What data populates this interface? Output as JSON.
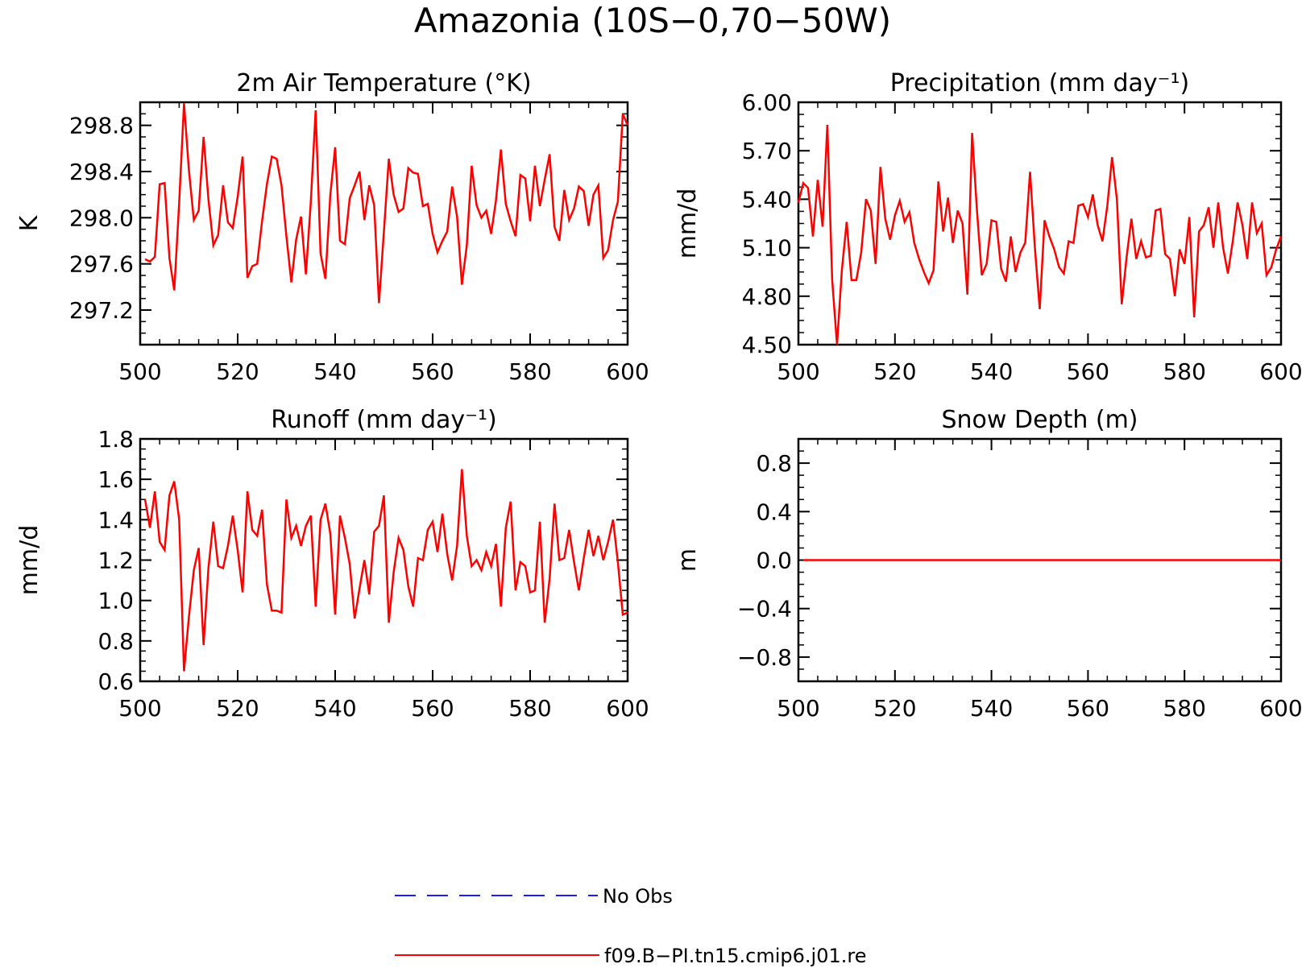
{
  "figure": {
    "title": "Amazonia (10S−0,70−50W)"
  },
  "legend": {
    "items": [
      {
        "label": "No Obs",
        "color": "#1a1aff",
        "style": "dashed"
      },
      {
        "label": "f09.B−PI.tn15.cmip6.j01.re",
        "color": "#ff0000",
        "style": "solid"
      }
    ]
  },
  "chart_data": [
    {
      "type": "line",
      "title": "2m Air Temperature (°K)",
      "ylabel": "K",
      "xlim": [
        500,
        600
      ],
      "ylim": [
        296.9,
        299.0
      ],
      "xticks": [
        500,
        520,
        540,
        560,
        580,
        600
      ],
      "xtick_labels": [
        "500",
        "520",
        "540",
        "560",
        "580",
        "600"
      ],
      "yticks": [
        297.2,
        297.6,
        298.0,
        298.4,
        298.8
      ],
      "ytick_labels": [
        "297.2",
        "297.6",
        "298.0",
        "298.4",
        "298.8"
      ],
      "series": [
        {
          "color": "#ff0000",
          "x": [
            501,
            502,
            503,
            504,
            505,
            506,
            507,
            508,
            509,
            510,
            511,
            512,
            513,
            514,
            515,
            516,
            517,
            518,
            519,
            520,
            521,
            522,
            523,
            524,
            525,
            526,
            527,
            528,
            529,
            530,
            531,
            532,
            533,
            534,
            535,
            536,
            537,
            538,
            539,
            540,
            541,
            542,
            543,
            544,
            545,
            546,
            547,
            548,
            549,
            550,
            551,
            552,
            553,
            554,
            555,
            556,
            557,
            558,
            559,
            560,
            561,
            562,
            563,
            564,
            565,
            566,
            567,
            568,
            569,
            570,
            571,
            572,
            573,
            574,
            575,
            576,
            577,
            578,
            579,
            580,
            581,
            582,
            583,
            584,
            585,
            586,
            587,
            588,
            589,
            590,
            591,
            592,
            593,
            594,
            595,
            596,
            597,
            598,
            599,
            600
          ],
          "values": [
            297.64,
            297.62,
            297.66,
            298.29,
            298.3,
            297.65,
            297.37,
            298.13,
            298.99,
            298.41,
            297.98,
            298.06,
            298.7,
            298.16,
            297.76,
            297.85,
            298.28,
            297.96,
            297.91,
            298.18,
            298.53,
            297.48,
            297.58,
            297.6,
            297.97,
            298.29,
            298.53,
            298.51,
            298.28,
            297.84,
            297.44,
            297.81,
            298.01,
            297.51,
            298.14,
            298.93,
            297.69,
            297.47,
            298.2,
            298.61,
            297.8,
            297.77,
            298.17,
            298.28,
            298.4,
            297.98,
            298.28,
            298.11,
            297.26,
            297.88,
            298.51,
            298.2,
            298.05,
            298.08,
            298.43,
            298.39,
            298.38,
            298.1,
            298.12,
            297.86,
            297.7,
            297.8,
            297.88,
            298.27,
            298.01,
            297.42,
            297.76,
            298.45,
            298.11,
            298.0,
            298.06,
            297.86,
            298.15,
            298.59,
            298.12,
            297.97,
            297.84,
            298.37,
            298.34,
            297.97,
            298.45,
            298.1,
            298.33,
            298.55,
            297.92,
            297.8,
            298.24,
            297.98,
            298.08,
            298.27,
            298.23,
            297.93,
            298.2,
            298.28,
            297.65,
            297.72,
            297.98,
            298.14,
            298.9,
            298.8
          ]
        }
      ]
    },
    {
      "type": "line",
      "title": "Precipitation (mm day⁻¹)",
      "ylabel": "mm/d",
      "xlim": [
        500,
        600
      ],
      "ylim": [
        4.5,
        6.0
      ],
      "xticks": [
        500,
        520,
        540,
        560,
        580,
        600
      ],
      "xtick_labels": [
        "500",
        "520",
        "540",
        "560",
        "580",
        "600"
      ],
      "yticks": [
        4.5,
        4.8,
        5.1,
        5.4,
        5.7,
        6.0
      ],
      "ytick_labels": [
        "4.50",
        "4.80",
        "5.10",
        "5.40",
        "5.70",
        "6.00"
      ],
      "series": [
        {
          "color": "#ff0000",
          "x": [
            500,
            501,
            502,
            503,
            504,
            505,
            506,
            507,
            508,
            509,
            510,
            511,
            512,
            513,
            514,
            515,
            516,
            517,
            518,
            519,
            520,
            521,
            522,
            523,
            524,
            525,
            526,
            527,
            528,
            529,
            530,
            531,
            532,
            533,
            534,
            535,
            536,
            537,
            538,
            539,
            540,
            541,
            542,
            543,
            544,
            545,
            546,
            547,
            548,
            549,
            550,
            551,
            552,
            553,
            554,
            555,
            556,
            557,
            558,
            559,
            560,
            561,
            562,
            563,
            564,
            565,
            566,
            567,
            568,
            569,
            570,
            571,
            572,
            573,
            574,
            575,
            576,
            577,
            578,
            579,
            580,
            581,
            582,
            583,
            584,
            585,
            586,
            587,
            588,
            589,
            590,
            591,
            592,
            593,
            594,
            595,
            596,
            597,
            598,
            599,
            600
          ],
          "values": [
            5.38,
            5.5,
            5.47,
            5.17,
            5.52,
            5.23,
            5.86,
            4.9,
            4.5,
            4.96,
            5.26,
            4.9,
            4.9,
            5.07,
            5.4,
            5.33,
            5.0,
            5.6,
            5.28,
            5.15,
            5.3,
            5.39,
            5.26,
            5.32,
            5.13,
            5.03,
            4.95,
            4.88,
            4.96,
            5.51,
            5.2,
            5.41,
            5.13,
            5.33,
            5.25,
            4.81,
            5.81,
            5.33,
            4.93,
            5.0,
            5.27,
            5.26,
            4.97,
            4.89,
            5.17,
            4.95,
            5.07,
            5.13,
            5.57,
            5.1,
            4.72,
            5.27,
            5.17,
            5.09,
            4.98,
            4.94,
            5.14,
            5.13,
            5.36,
            5.37,
            5.29,
            5.43,
            5.24,
            5.14,
            5.36,
            5.66,
            5.4,
            4.75,
            5.04,
            5.28,
            5.03,
            5.14,
            5.04,
            5.05,
            5.33,
            5.34,
            5.06,
            5.03,
            4.8,
            5.09,
            5.0,
            5.29,
            4.67,
            5.2,
            5.24,
            5.35,
            5.1,
            5.38,
            5.1,
            4.94,
            5.14,
            5.38,
            5.24,
            5.03,
            5.38,
            5.19,
            5.25,
            4.93,
            4.98,
            5.09,
            5.17
          ]
        }
      ]
    },
    {
      "type": "line",
      "title": "Runoff (mm day⁻¹)",
      "ylabel": "mm/d",
      "xlim": [
        500,
        600
      ],
      "ylim": [
        0.6,
        1.8
      ],
      "xticks": [
        500,
        520,
        540,
        560,
        580,
        600
      ],
      "xtick_labels": [
        "500",
        "520",
        "540",
        "560",
        "580",
        "600"
      ],
      "yticks": [
        0.6,
        0.8,
        1.0,
        1.2,
        1.4,
        1.6,
        1.8
      ],
      "ytick_labels": [
        "0.6",
        "0.8",
        "1.0",
        "1.2",
        "1.4",
        "1.6",
        "1.8"
      ],
      "series": [
        {
          "color": "#ff0000",
          "x": [
            501,
            502,
            503,
            504,
            505,
            506,
            507,
            508,
            509,
            510,
            511,
            512,
            513,
            514,
            515,
            516,
            517,
            518,
            519,
            520,
            521,
            522,
            523,
            524,
            525,
            526,
            527,
            528,
            529,
            530,
            531,
            532,
            533,
            534,
            535,
            536,
            537,
            538,
            539,
            540,
            541,
            542,
            543,
            544,
            545,
            546,
            547,
            548,
            549,
            550,
            551,
            552,
            553,
            554,
            555,
            556,
            557,
            558,
            559,
            560,
            561,
            562,
            563,
            564,
            565,
            566,
            567,
            568,
            569,
            570,
            571,
            572,
            573,
            574,
            575,
            576,
            577,
            578,
            579,
            580,
            581,
            582,
            583,
            584,
            585,
            586,
            587,
            588,
            589,
            590,
            591,
            592,
            593,
            594,
            595,
            596,
            597,
            598,
            599,
            600
          ],
          "values": [
            1.5,
            1.36,
            1.54,
            1.29,
            1.25,
            1.52,
            1.59,
            1.4,
            0.65,
            0.92,
            1.15,
            1.26,
            0.78,
            1.16,
            1.39,
            1.17,
            1.16,
            1.27,
            1.42,
            1.25,
            1.04,
            1.54,
            1.35,
            1.32,
            1.45,
            1.08,
            0.95,
            0.95,
            0.94,
            1.5,
            1.31,
            1.37,
            1.27,
            1.37,
            1.42,
            0.97,
            1.4,
            1.48,
            1.33,
            0.93,
            1.42,
            1.31,
            1.18,
            0.91,
            1.06,
            1.2,
            1.03,
            1.34,
            1.37,
            1.52,
            0.89,
            1.14,
            1.31,
            1.25,
            1.07,
            0.97,
            1.21,
            1.2,
            1.35,
            1.39,
            1.24,
            1.43,
            1.23,
            1.1,
            1.27,
            1.65,
            1.32,
            1.17,
            1.2,
            1.15,
            1.24,
            1.17,
            1.28,
            0.97,
            1.36,
            1.49,
            1.05,
            1.19,
            1.17,
            1.04,
            1.05,
            1.39,
            0.89,
            1.11,
            1.48,
            1.2,
            1.21,
            1.35,
            1.19,
            1.05,
            1.21,
            1.35,
            1.22,
            1.32,
            1.2,
            1.29,
            1.4,
            1.19,
            0.93,
            0.94
          ]
        }
      ]
    },
    {
      "type": "line",
      "title": "Snow Depth (m)",
      "ylabel": "m",
      "xlim": [
        500,
        600
      ],
      "ylim": [
        -1.0,
        1.0
      ],
      "xticks": [
        500,
        520,
        540,
        560,
        580,
        600
      ],
      "xtick_labels": [
        "500",
        "520",
        "540",
        "560",
        "580",
        "600"
      ],
      "yticks": [
        -0.8,
        -0.4,
        0.0,
        0.4,
        0.8
      ],
      "ytick_labels": [
        "−0.8",
        "−0.4",
        "0.0",
        "0.4",
        "0.8"
      ],
      "series": [
        {
          "color": "#ff0000",
          "x": [
            501,
            600
          ],
          "values": [
            0.0,
            0.0
          ]
        }
      ]
    }
  ]
}
